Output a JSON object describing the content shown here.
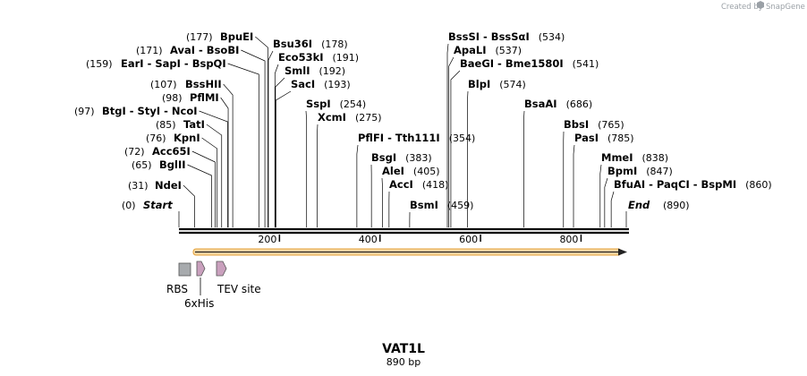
{
  "credit": "Created by",
  "brand": "SnapGene",
  "sequence": {
    "name": "VAT1L",
    "length_label": "890 bp",
    "length": 890
  },
  "ticks": [
    {
      "value": 200,
      "label": "200"
    },
    {
      "value": 400,
      "label": "400"
    },
    {
      "value": 600,
      "label": "600"
    },
    {
      "value": 800,
      "label": "800"
    }
  ],
  "termini": [
    {
      "label": "Start",
      "pos": 0,
      "pos_label": "(0)"
    },
    {
      "label": "End",
      "pos": 890,
      "pos_label": "(890)"
    }
  ],
  "sites": [
    {
      "pos": 177,
      "pos_label": "(177)",
      "names": [
        "BpuEI"
      ]
    },
    {
      "pos": 171,
      "pos_label": "(171)",
      "names": [
        "AvaI",
        "BsoBI"
      ]
    },
    {
      "pos": 159,
      "pos_label": "(159)",
      "names": [
        "EarI",
        "SapI",
        "BspQI"
      ]
    },
    {
      "pos": 107,
      "pos_label": "(107)",
      "names": [
        "BssHII"
      ]
    },
    {
      "pos": 98,
      "pos_label": "(98)",
      "names": [
        "PflMI"
      ]
    },
    {
      "pos": 97,
      "pos_label": "(97)",
      "names": [
        "BtgI",
        "StyI",
        "NcoI"
      ]
    },
    {
      "pos": 85,
      "pos_label": "(85)",
      "names": [
        "TatI"
      ]
    },
    {
      "pos": 76,
      "pos_label": "(76)",
      "names": [
        "KpnI"
      ]
    },
    {
      "pos": 72,
      "pos_label": "(72)",
      "names": [
        "Acc65I"
      ]
    },
    {
      "pos": 65,
      "pos_label": "(65)",
      "names": [
        "BglII"
      ]
    },
    {
      "pos": 31,
      "pos_label": "(31)",
      "names": [
        "NdeI"
      ]
    },
    {
      "pos": 178,
      "pos_label": "(178)",
      "names": [
        "Bsu36I"
      ]
    },
    {
      "pos": 191,
      "pos_label": "(191)",
      "names": [
        "Eco53kI"
      ]
    },
    {
      "pos": 192,
      "pos_label": "(192)",
      "names": [
        "SmlI"
      ]
    },
    {
      "pos": 193,
      "pos_label": "(193)",
      "names": [
        "SacI"
      ]
    },
    {
      "pos": 254,
      "pos_label": "(254)",
      "names": [
        "SspI"
      ]
    },
    {
      "pos": 275,
      "pos_label": "(275)",
      "names": [
        "XcmI"
      ]
    },
    {
      "pos": 354,
      "pos_label": "(354)",
      "names": [
        "PflFI",
        "Tth111I"
      ]
    },
    {
      "pos": 383,
      "pos_label": "(383)",
      "names": [
        "BsgI"
      ]
    },
    {
      "pos": 405,
      "pos_label": "(405)",
      "names": [
        "AleI"
      ]
    },
    {
      "pos": 418,
      "pos_label": "(418)",
      "names": [
        "AccI"
      ]
    },
    {
      "pos": 459,
      "pos_label": "(459)",
      "names": [
        "BsmI"
      ]
    },
    {
      "pos": 534,
      "pos_label": "(534)",
      "names": [
        "BssSI",
        "BssSαI"
      ]
    },
    {
      "pos": 537,
      "pos_label": "(537)",
      "names": [
        "ApaLI"
      ]
    },
    {
      "pos": 541,
      "pos_label": "(541)",
      "names": [
        "BaeGI",
        "Bme1580I"
      ]
    },
    {
      "pos": 574,
      "pos_label": "(574)",
      "names": [
        "BlpI"
      ]
    },
    {
      "pos": 686,
      "pos_label": "(686)",
      "names": [
        "BsaAI"
      ]
    },
    {
      "pos": 765,
      "pos_label": "(765)",
      "names": [
        "BbsI"
      ]
    },
    {
      "pos": 785,
      "pos_label": "(785)",
      "names": [
        "PasI"
      ]
    },
    {
      "pos": 838,
      "pos_label": "(838)",
      "names": [
        "MmeI"
      ]
    },
    {
      "pos": 847,
      "pos_label": "(847)",
      "names": [
        "BpmI"
      ]
    },
    {
      "pos": 860,
      "pos_label": "(860)",
      "names": [
        "BfuAI",
        "PaqCI",
        "BspMI"
      ]
    }
  ],
  "features": [
    {
      "name": "RBS",
      "type": "box",
      "color": "#a7aaad"
    },
    {
      "name": "6xHis",
      "type": "arrow",
      "color": "#c9a0bd"
    },
    {
      "name": "TEV site",
      "type": "arrow",
      "color": "#c9a0bd"
    }
  ],
  "orf": {
    "color": "#f7d9a6",
    "border": "#e4a23a"
  },
  "colors": {
    "backbone": "#000000",
    "tick": "#000000"
  }
}
